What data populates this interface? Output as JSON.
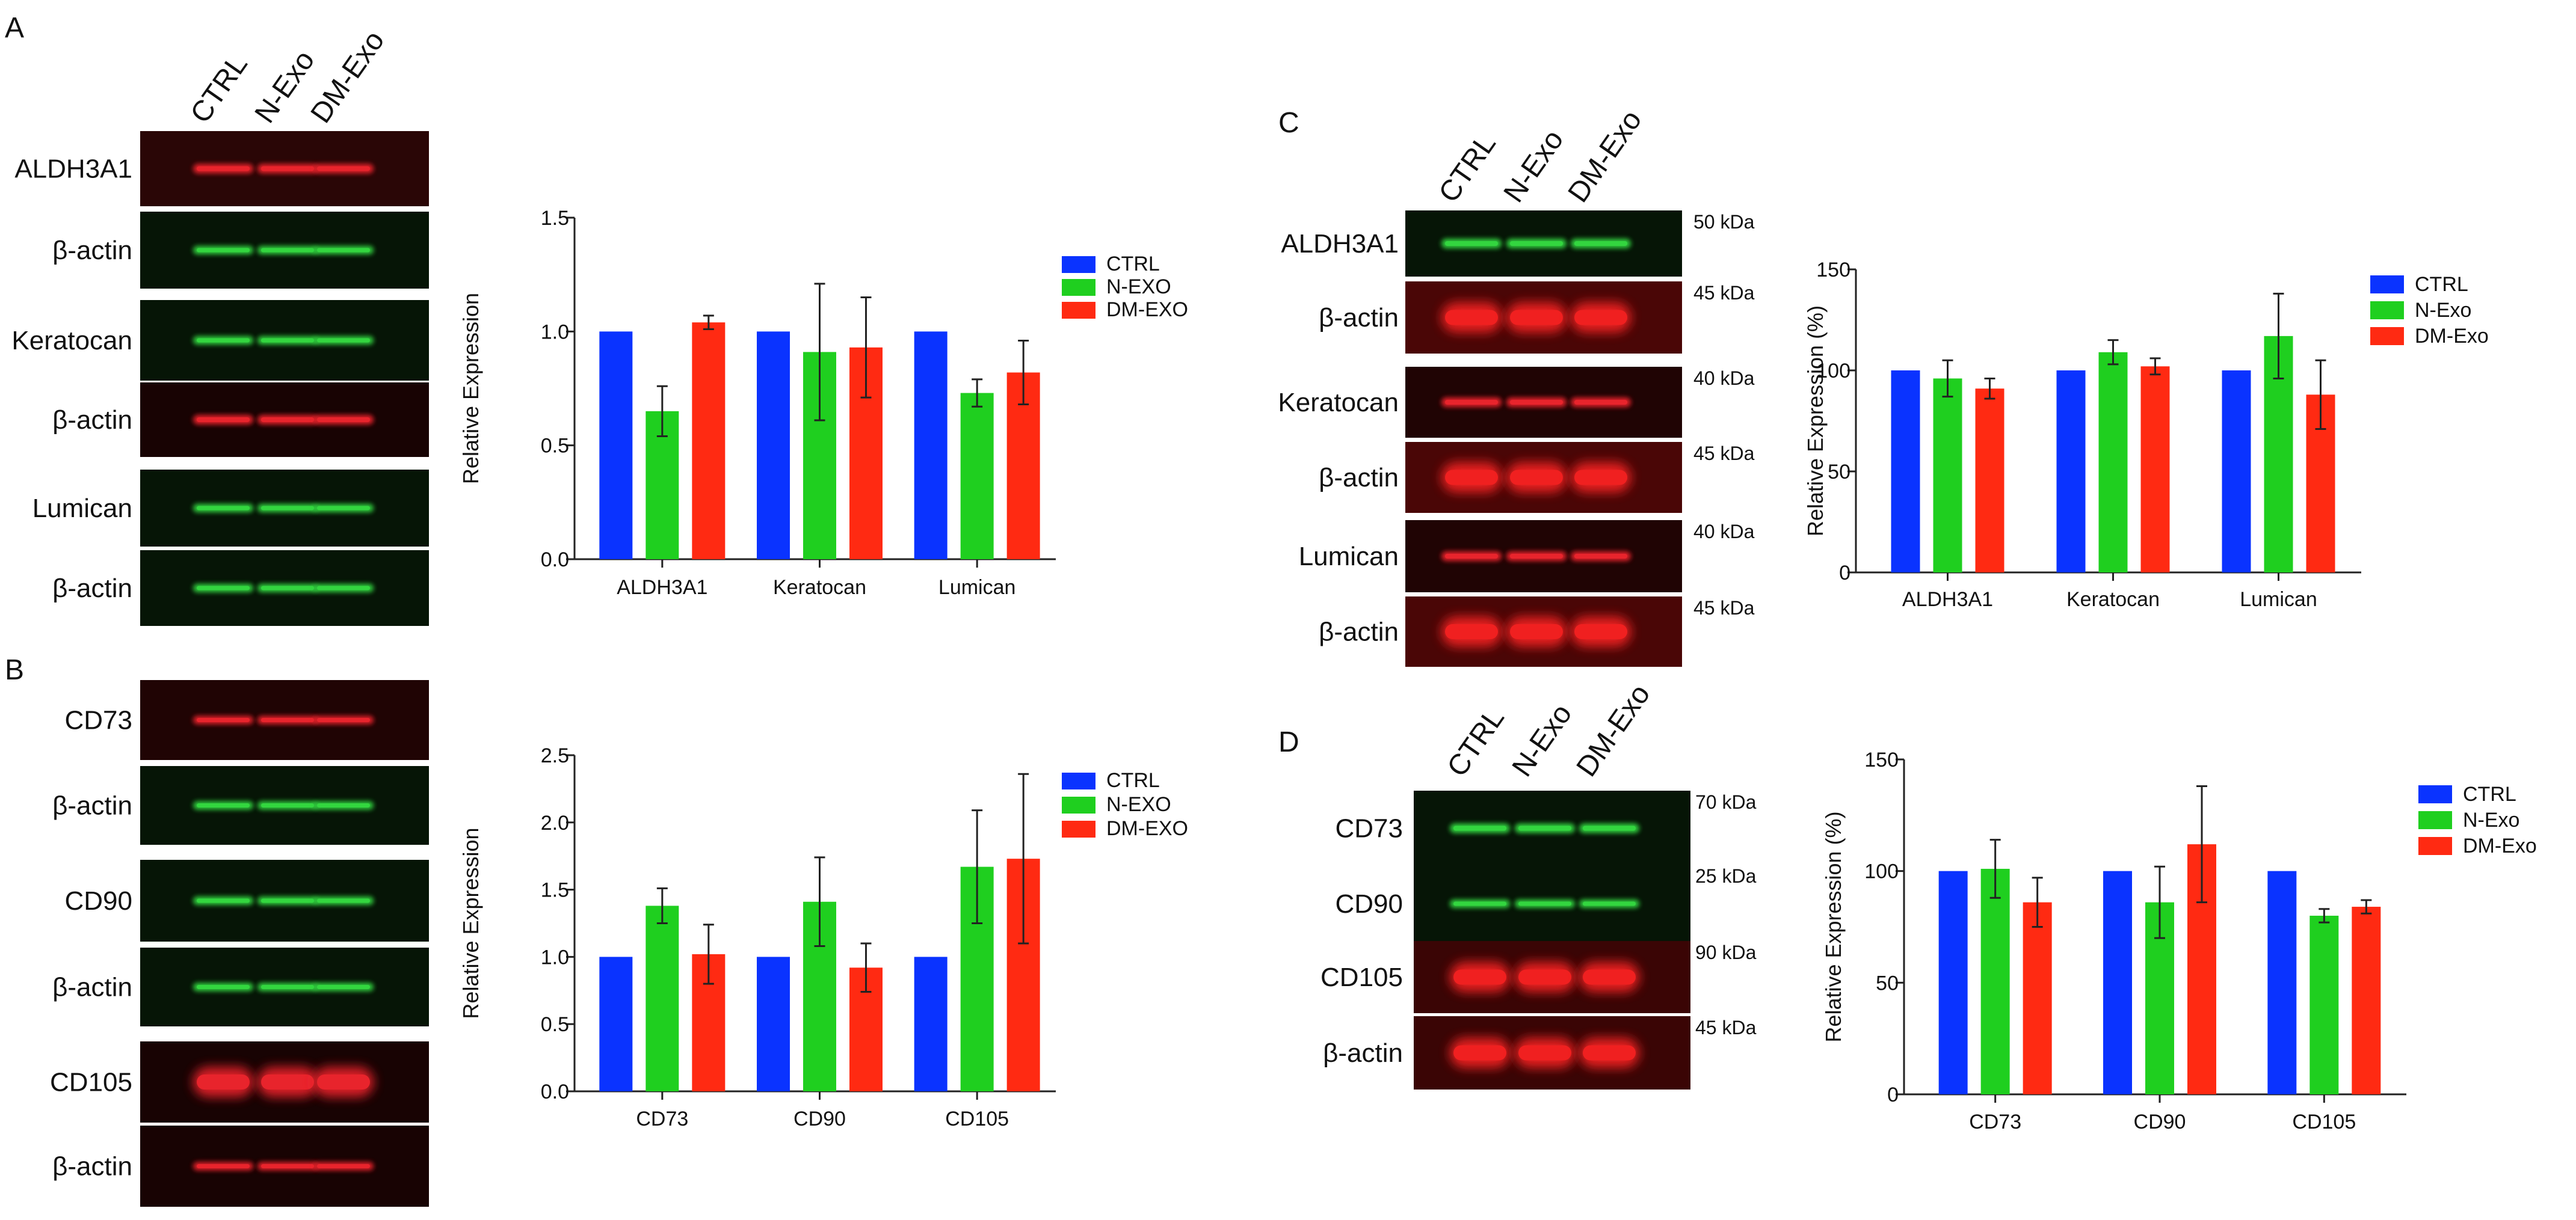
{
  "panels": {
    "A": {
      "letter": "A",
      "lanes": [
        "CTRL",
        "N-Exo",
        "DM-Exo"
      ],
      "blot_rows": [
        {
          "label": "ALDH3A1",
          "color": "#e8242c",
          "bg": "#2a0606"
        },
        {
          "label": "β-actin",
          "color": "#33d63f",
          "bg": "#061506"
        },
        {
          "label": "Keratocan",
          "color": "#33d63f",
          "bg": "#061506"
        },
        {
          "label": "β-actin",
          "color": "#e8242c",
          "bg": "#180303"
        },
        {
          "label": "Lumican",
          "color": "#33d63f",
          "bg": "#061506"
        },
        {
          "label": "β-actin",
          "color": "#33d63f",
          "bg": "#061506"
        }
      ]
    },
    "B": {
      "letter": "B",
      "blot_rows": [
        {
          "label": "CD73",
          "color": "#e8242c",
          "bg": "#200404"
        },
        {
          "label": "β-actin",
          "color": "#33d63f",
          "bg": "#061506"
        },
        {
          "label": "CD90",
          "color": "#33d63f",
          "bg": "#061506"
        },
        {
          "label": "β-actin",
          "color": "#33d63f",
          "bg": "#061506"
        },
        {
          "label": "CD105",
          "color": "#e8242c",
          "bg": "#180303"
        },
        {
          "label": "β-actin",
          "color": "#e8242c",
          "bg": "#180303"
        }
      ]
    },
    "C": {
      "letter": "C",
      "lanes": [
        "CTRL",
        "N-Exo",
        "DM-Exo"
      ],
      "blot_rows": [
        {
          "label": "ALDH3A1",
          "kda": "50 kDa",
          "color": "#33d63f",
          "bg": "#061506"
        },
        {
          "label": "β-actin",
          "kda": "45 kDa",
          "color": "#f02020",
          "bg": "#4a0606"
        },
        {
          "label": "Keratocan",
          "kda": "40 kDa",
          "color": "#e8242c",
          "bg": "#200404"
        },
        {
          "label": "β-actin",
          "kda": "45 kDa",
          "color": "#f02020",
          "bg": "#4a0606"
        },
        {
          "label": "Lumican",
          "kda": "40 kDa",
          "color": "#e8242c",
          "bg": "#200404"
        },
        {
          "label": "β-actin",
          "kda": "45 kDa",
          "color": "#f02020",
          "bg": "#4a0606"
        }
      ]
    },
    "D": {
      "letter": "D",
      "lanes": [
        "CTRL",
        "N-Exo",
        "DM-Exo"
      ],
      "blot_rows": [
        {
          "label": "CD73",
          "kda": "70 kDa",
          "color": "#33d63f",
          "bg": "#061506"
        },
        {
          "label": "CD90",
          "kda": "25 kDa",
          "color": "#33d63f",
          "bg": "#061506"
        },
        {
          "label": "CD105",
          "kda": "90 kDa",
          "color": "#f02020",
          "bg": "#3a0505"
        },
        {
          "label": "β-actin",
          "kda": "45 kDa",
          "color": "#f02020",
          "bg": "#3a0505"
        }
      ]
    }
  },
  "series_colors": [
    "#0a33ff",
    "#1fcf1f",
    "#ff2a12"
  ],
  "chart_data": [
    {
      "id": "A",
      "type": "bar",
      "title": "",
      "xlabel": "",
      "ylabel": "Relative Expression",
      "ylim": [
        0,
        1.5
      ],
      "yticks": [
        "0.0",
        "0.5",
        "1.0",
        "1.5"
      ],
      "categories": [
        "ALDH3A1",
        "Keratocan",
        "Lumican"
      ],
      "legend_position": "right",
      "series": [
        {
          "name": "CTRL",
          "values": [
            1.0,
            1.0,
            1.0
          ],
          "errors": [
            0,
            0,
            0
          ]
        },
        {
          "name": "N-EXO",
          "values": [
            0.65,
            0.91,
            0.73
          ],
          "errors": [
            0.11,
            0.3,
            0.06
          ]
        },
        {
          "name": "DM-EXO",
          "values": [
            1.04,
            0.93,
            0.82
          ],
          "errors": [
            0.03,
            0.22,
            0.14
          ]
        }
      ]
    },
    {
      "id": "B",
      "type": "bar",
      "title": "",
      "xlabel": "",
      "ylabel": "Relative Expression",
      "ylim": [
        0,
        2.5
      ],
      "yticks": [
        "0.0",
        "0.5",
        "1.0",
        "1.5",
        "2.0",
        "2.5"
      ],
      "categories": [
        "CD73",
        "CD90",
        "CD105"
      ],
      "legend_position": "right",
      "series": [
        {
          "name": "CTRL",
          "values": [
            1.0,
            1.0,
            1.0
          ],
          "errors": [
            0,
            0,
            0
          ]
        },
        {
          "name": "N-EXO",
          "values": [
            1.38,
            1.41,
            1.67
          ],
          "errors": [
            0.13,
            0.33,
            0.42
          ]
        },
        {
          "name": "DM-EXO",
          "values": [
            1.02,
            0.92,
            1.73
          ],
          "errors": [
            0.22,
            0.18,
            0.63
          ]
        }
      ]
    },
    {
      "id": "C",
      "type": "bar",
      "title": "",
      "xlabel": "",
      "ylabel": "Relative Expression (%)",
      "ylim": [
        0,
        150
      ],
      "yticks": [
        "0",
        "50",
        "100",
        "150"
      ],
      "categories": [
        "ALDH3A1",
        "Keratocan",
        "Lumican"
      ],
      "legend_position": "right",
      "series": [
        {
          "name": "CTRL",
          "values": [
            100,
            100,
            100
          ],
          "errors": [
            0,
            0,
            0
          ]
        },
        {
          "name": "N-Exo",
          "values": [
            96,
            109,
            117
          ],
          "errors": [
            9,
            6,
            21
          ]
        },
        {
          "name": "DM-Exo",
          "values": [
            91,
            102,
            88
          ],
          "errors": [
            5,
            4,
            17
          ]
        }
      ]
    },
    {
      "id": "D",
      "type": "bar",
      "title": "",
      "xlabel": "",
      "ylabel": "Relative Expression (%)",
      "ylim": [
        0,
        150
      ],
      "yticks": [
        "0",
        "50",
        "100",
        "150"
      ],
      "categories": [
        "CD73",
        "CD90",
        "CD105"
      ],
      "legend_position": "right",
      "series": [
        {
          "name": "CTRL",
          "values": [
            100,
            100,
            100
          ],
          "errors": [
            0,
            0,
            0
          ]
        },
        {
          "name": "N-Exo",
          "values": [
            101,
            86,
            80
          ],
          "errors": [
            13,
            16,
            3
          ]
        },
        {
          "name": "DM-Exo",
          "values": [
            86,
            112,
            84
          ],
          "errors": [
            11,
            26,
            3
          ]
        }
      ]
    }
  ]
}
